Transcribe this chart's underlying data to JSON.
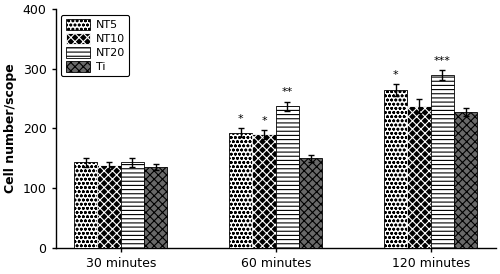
{
  "groups": [
    "30 minutes",
    "60 minutes",
    "120 minutes"
  ],
  "series": [
    "NT5",
    "NT10",
    "NT20",
    "Ti"
  ],
  "values": [
    [
      143,
      138,
      143,
      135
    ],
    [
      193,
      190,
      237,
      150
    ],
    [
      265,
      238,
      290,
      228
    ]
  ],
  "errors": [
    [
      7,
      6,
      8,
      5
    ],
    [
      8,
      7,
      8,
      6
    ],
    [
      10,
      12,
      8,
      7
    ]
  ],
  "annotations": [
    [
      "",
      "",
      "",
      ""
    ],
    [
      "*",
      "*",
      "**",
      ""
    ],
    [
      "*",
      "",
      "***",
      ""
    ]
  ],
  "ylabel": "Cell number/scope",
  "ylim": [
    0,
    400
  ],
  "yticks": [
    0,
    100,
    200,
    300,
    400
  ],
  "bar_width": 0.15,
  "background_color": "#ffffff"
}
